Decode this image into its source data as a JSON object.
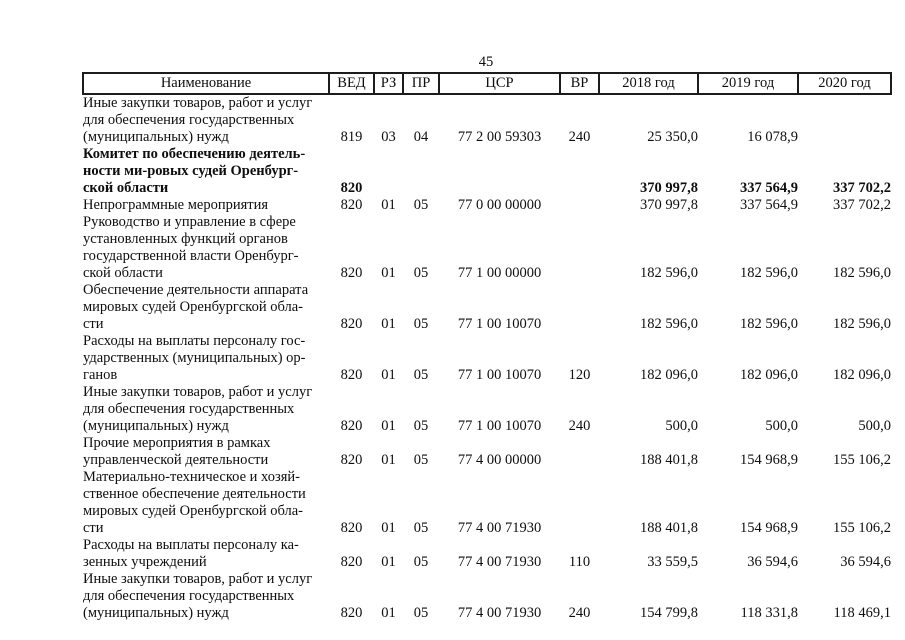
{
  "page": {
    "number": "45"
  },
  "colors": {
    "text": "#0e0e0e",
    "border": "#1c1c1c",
    "background": "#ffffff"
  },
  "table": {
    "columns": [
      {
        "key": "name",
        "label": "Наименование"
      },
      {
        "key": "ved",
        "label": "ВЕД"
      },
      {
        "key": "rz",
        "label": "РЗ"
      },
      {
        "key": "pr",
        "label": "ПР"
      },
      {
        "key": "csr",
        "label": "ЦСР"
      },
      {
        "key": "vr",
        "label": "ВР"
      },
      {
        "key": "y2018",
        "label": "2018 год"
      },
      {
        "key": "y2019",
        "label": "2019 год"
      },
      {
        "key": "y2020",
        "label": "2020 год"
      }
    ],
    "rows": [
      {
        "bold": false,
        "name": "Иные закупки товаров, работ и услуг\nдля обеспечения государственных\n(муниципальных) нужд",
        "ved": "819",
        "rz": "03",
        "pr": "04",
        "csr": "77 2 00 59303",
        "vr": "240",
        "y2018": "25 350,0",
        "y2019": "16 078,9",
        "y2020": ""
      },
      {
        "bold": true,
        "name": "Комитет по обеспечению деятель-\nности ми-ровых судей Оренбург-\nской области",
        "ved": "820",
        "rz": "",
        "pr": "",
        "csr": "",
        "vr": "",
        "y2018": "370 997,8",
        "y2019": "337 564,9",
        "y2020": "337 702,2"
      },
      {
        "bold": false,
        "name": "Непрограммные мероприятия",
        "ved": "820",
        "rz": "01",
        "pr": "05",
        "csr": "77 0 00 00000",
        "vr": "",
        "y2018": "370 997,8",
        "y2019": "337 564,9",
        "y2020": "337 702,2"
      },
      {
        "bold": false,
        "name": "Руководство и управление в сфере\nустановленных функций органов\nгосударственной власти Оренбург-\nской области",
        "ved": "820",
        "rz": "01",
        "pr": "05",
        "csr": "77 1 00 00000",
        "vr": "",
        "y2018": "182 596,0",
        "y2019": "182 596,0",
        "y2020": "182 596,0"
      },
      {
        "bold": false,
        "name": "Обеспечение деятельности аппарата\nмировых судей Оренбургской обла-\nсти",
        "ved": "820",
        "rz": "01",
        "pr": "05",
        "csr": "77 1 00 10070",
        "vr": "",
        "y2018": "182 596,0",
        "y2019": "182 596,0",
        "y2020": "182 596,0"
      },
      {
        "bold": false,
        "name": "Расходы на выплаты персоналу гос-\nударственных (муниципальных) ор-\nганов",
        "ved": "820",
        "rz": "01",
        "pr": "05",
        "csr": "77 1 00 10070",
        "vr": "120",
        "y2018": "182 096,0",
        "y2019": "182 096,0",
        "y2020": "182 096,0"
      },
      {
        "bold": false,
        "name": "Иные закупки товаров, работ и услуг\nдля обеспечения государственных\n(муниципальных) нужд",
        "ved": "820",
        "rz": "01",
        "pr": "05",
        "csr": "77 1 00 10070",
        "vr": "240",
        "y2018": "500,0",
        "y2019": "500,0",
        "y2020": "500,0"
      },
      {
        "bold": false,
        "name": "Прочие мероприятия в рамках\nуправленческой деятельности",
        "ved": "820",
        "rz": "01",
        "pr": "05",
        "csr": "77 4 00 00000",
        "vr": "",
        "y2018": "188 401,8",
        "y2019": "154 968,9",
        "y2020": "155 106,2"
      },
      {
        "bold": false,
        "name": "Материально-техническое и хозяй-\nственное обеспечение деятельности\nмировых судей Оренбургской обла-\nсти",
        "ved": "820",
        "rz": "01",
        "pr": "05",
        "csr": "77 4 00 71930",
        "vr": "",
        "y2018": "188 401,8",
        "y2019": "154 968,9",
        "y2020": "155 106,2"
      },
      {
        "bold": false,
        "name": "Расходы на выплаты персоналу ка-\nзенных учреждений",
        "ved": "820",
        "rz": "01",
        "pr": "05",
        "csr": "77 4 00 71930",
        "vr": "110",
        "y2018": "33 559,5",
        "y2019": "36 594,6",
        "y2020": "36 594,6"
      },
      {
        "bold": false,
        "name": "Иные закупки товаров, работ и услуг\nдля обеспечения государственных\n(муниципальных) нужд",
        "ved": "820",
        "rz": "01",
        "pr": "05",
        "csr": "77 4 00 71930",
        "vr": "240",
        "y2018": "154 799,8",
        "y2019": "118 331,8",
        "y2020": "118 469,1"
      }
    ]
  }
}
